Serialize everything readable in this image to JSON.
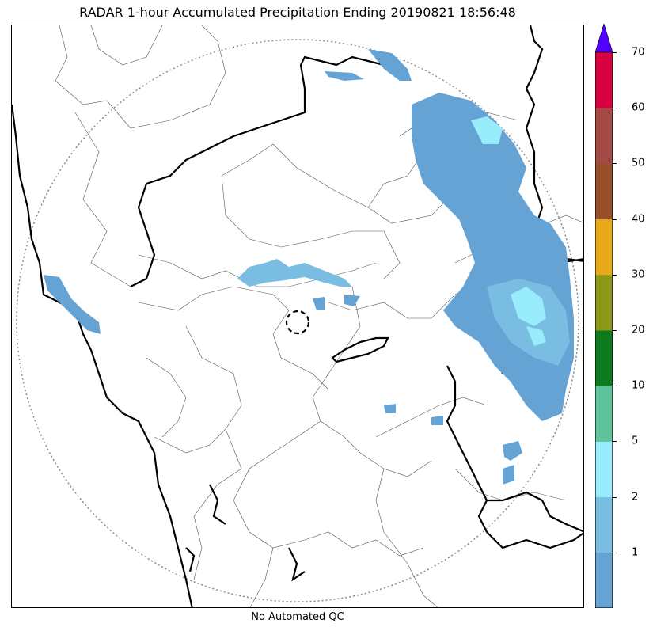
{
  "title": "RADAR 1-hour Accumulated Precipitation Ending 20190821 18:56:48",
  "footer": "No Automated QC",
  "colorbar": {
    "levels": [
      {
        "color": "#65a3d5"
      },
      {
        "color": "#79bde3"
      },
      {
        "color": "#98ecfc"
      },
      {
        "color": "#5ec29a"
      },
      {
        "color": "#0e7a1f"
      },
      {
        "color": "#8c9718"
      },
      {
        "color": "#e8aa1b"
      },
      {
        "color": "#994e2a"
      },
      {
        "color": "#a44a44"
      },
      {
        "color": "#d60043"
      }
    ],
    "extend_color": "#5200ff",
    "tick_labels": [
      "1",
      "2",
      "5",
      "10",
      "20",
      "30",
      "40",
      "50",
      "60",
      "70"
    ]
  },
  "map": {
    "range_ring_color": "#888888",
    "precip_colors": {
      "light": "#65a3d5",
      "moderate": "#79bde3",
      "heavy": "#98ecfc"
    }
  }
}
